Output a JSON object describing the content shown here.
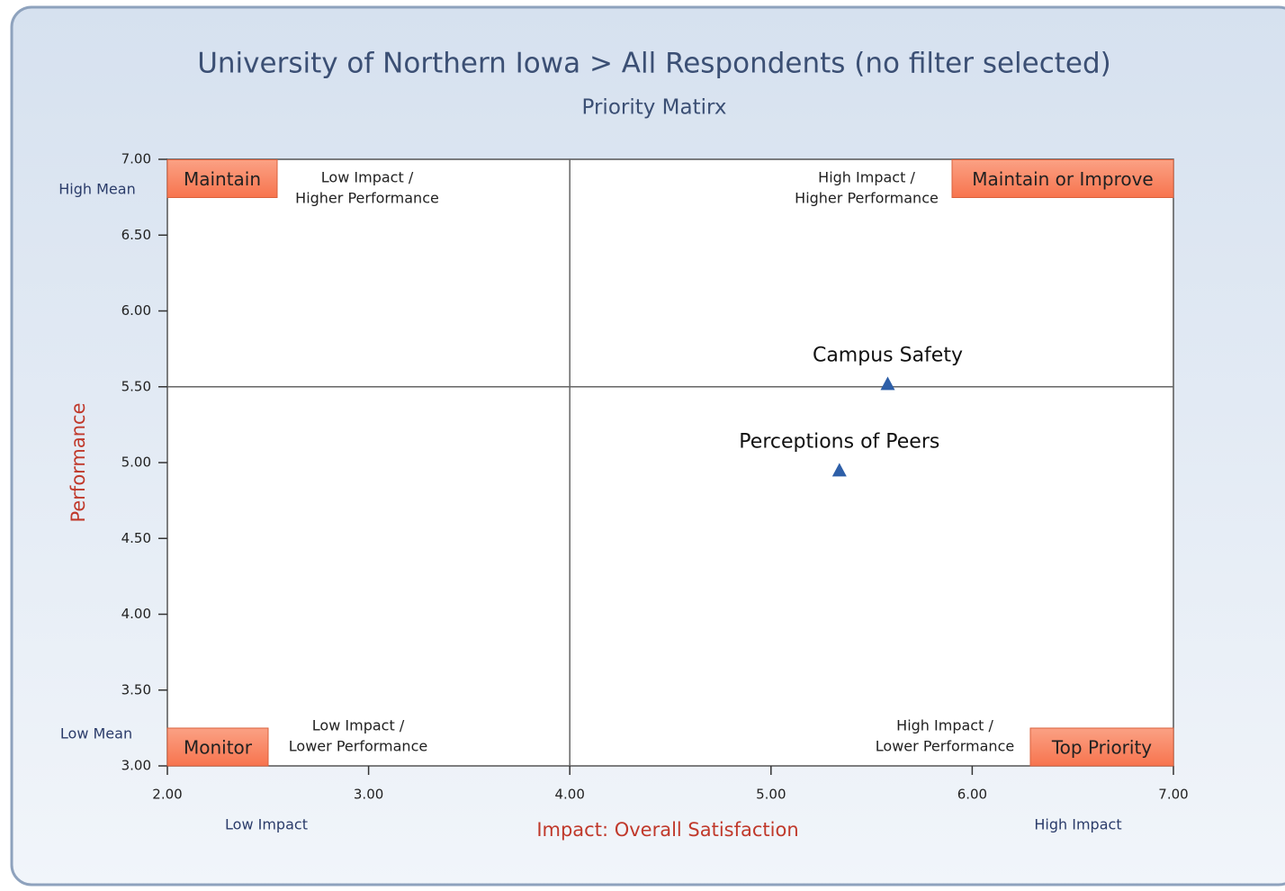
{
  "chart_data": {
    "type": "scatter",
    "title": "University of Northern Iowa > All Respondents (no filter selected)",
    "subtitle": "Priority Matirx",
    "xlabel": "Impact: Overall Satisfaction",
    "ylabel": "Performance",
    "x_end_labels": [
      "Low Impact",
      "High Impact"
    ],
    "y_end_labels": [
      "Low Mean",
      "High Mean"
    ],
    "labels": [
      "Campus Safety",
      "Perceptions of Peers"
    ],
    "x": [
      5.58,
      5.34
    ],
    "values": [
      5.52,
      4.95
    ],
    "color": "#2e5fa8",
    "xlim": [
      2,
      7
    ],
    "ylim": [
      3,
      7
    ],
    "xticks": [
      {
        "value": 2,
        "label": "2.00"
      },
      {
        "value": 3,
        "label": "3.00"
      },
      {
        "value": 4,
        "label": "4.00"
      },
      {
        "value": 5,
        "label": "5.00"
      },
      {
        "value": 6,
        "label": "6.00"
      },
      {
        "value": 7,
        "label": "7.00"
      }
    ],
    "yticks": [
      {
        "value": 3,
        "label": "3.00"
      },
      {
        "value": 3.5,
        "label": "3.50"
      },
      {
        "value": 4,
        "label": "4.00"
      },
      {
        "value": 4.5,
        "label": "4.50"
      },
      {
        "value": 5,
        "label": "5.00"
      },
      {
        "value": 5.5,
        "label": "5.50"
      },
      {
        "value": 6,
        "label": "6.00"
      },
      {
        "value": 6.5,
        "label": "6.50"
      },
      {
        "value": 7,
        "label": "7.00"
      }
    ],
    "quadrant_x": 4,
    "quadrant_y": 5.5,
    "quadrants": [
      {
        "tag": "Maintain",
        "description": [
          "Low Impact /",
          "Higher Performance"
        ]
      },
      {
        "tag": "Maintain or Improve",
        "description": [
          "High Impact /",
          "Higher Performance"
        ]
      },
      {
        "tag": "Monitor",
        "description": [
          "Low Impact /",
          "Lower Performance"
        ]
      },
      {
        "tag": "Top Priority",
        "description": [
          "High Impact /",
          "Lower Performance"
        ]
      }
    ]
  }
}
